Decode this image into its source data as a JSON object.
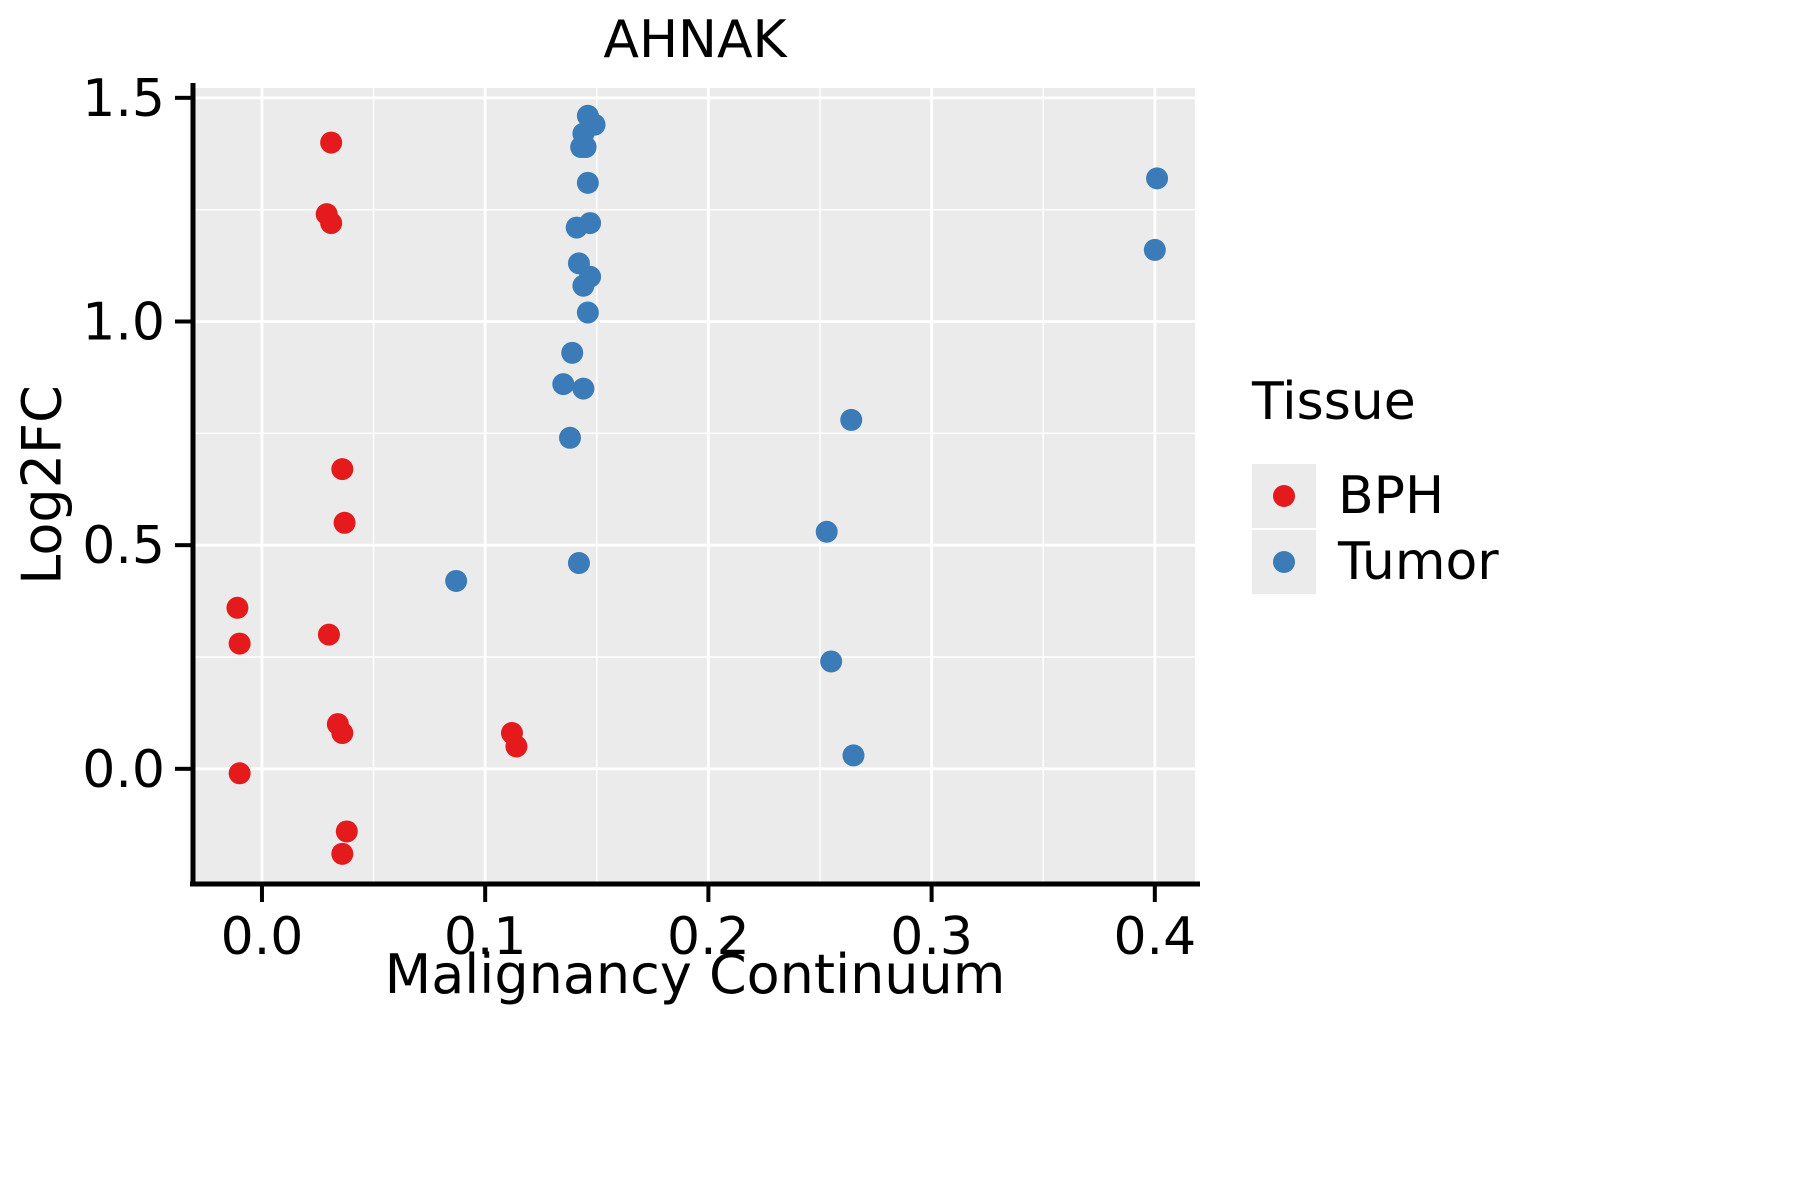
{
  "style": {
    "panel_bg": "#EBEBEB",
    "grid_color": "#FFFFFF",
    "axis_color": "#000000",
    "text_color": "#000000",
    "bph_color": "#E41A1C",
    "tumor_color": "#3B7BB8"
  },
  "chart_data": {
    "type": "scatter",
    "title": "AHNAK",
    "xlabel": "Malignancy Continuum",
    "ylabel": "Log2FC",
    "xlim": [
      -0.03,
      0.418
    ],
    "ylim": [
      -0.253,
      1.522
    ],
    "x_ticks": [
      0.0,
      0.1,
      0.2,
      0.3,
      0.4
    ],
    "x_tick_labels": [
      "0.0",
      "0.1",
      "0.2",
      "0.3",
      "0.4"
    ],
    "x_minor_ticks": [
      0.05,
      0.15,
      0.25,
      0.35
    ],
    "y_ticks": [
      0.0,
      0.5,
      1.0,
      1.5
    ],
    "y_tick_labels": [
      "0.0",
      "0.5",
      "1.0",
      "1.5"
    ],
    "y_minor_ticks": [
      0.25,
      0.75,
      1.25
    ],
    "grid": true,
    "legend_position": "right",
    "legend_title": "Tissue",
    "series": [
      {
        "name": "BPH",
        "color": "#E41A1C",
        "points": [
          [
            0.031,
            1.4
          ],
          [
            0.029,
            1.24
          ],
          [
            0.031,
            1.22
          ],
          [
            0.036,
            0.67
          ],
          [
            0.037,
            0.55
          ],
          [
            -0.011,
            0.36
          ],
          [
            0.03,
            0.3
          ],
          [
            -0.01,
            0.28
          ],
          [
            0.034,
            0.1
          ],
          [
            0.036,
            0.08
          ],
          [
            0.112,
            0.08
          ],
          [
            0.114,
            0.05
          ],
          [
            -0.01,
            -0.01
          ],
          [
            0.038,
            -0.14
          ],
          [
            0.036,
            -0.19
          ]
        ]
      },
      {
        "name": "Tumor",
        "color": "#3B7BB8",
        "points": [
          [
            0.146,
            1.46
          ],
          [
            0.149,
            1.44
          ],
          [
            0.144,
            1.42
          ],
          [
            0.143,
            1.39
          ],
          [
            0.145,
            1.39
          ],
          [
            0.146,
            1.31
          ],
          [
            0.147,
            1.22
          ],
          [
            0.141,
            1.21
          ],
          [
            0.142,
            1.13
          ],
          [
            0.147,
            1.1
          ],
          [
            0.144,
            1.08
          ],
          [
            0.146,
            1.02
          ],
          [
            0.139,
            0.93
          ],
          [
            0.135,
            0.86
          ],
          [
            0.144,
            0.85
          ],
          [
            0.138,
            0.74
          ],
          [
            0.142,
            0.46
          ],
          [
            0.087,
            0.42
          ],
          [
            0.264,
            0.78
          ],
          [
            0.253,
            0.53
          ],
          [
            0.255,
            0.24
          ],
          [
            0.265,
            0.03
          ],
          [
            0.401,
            1.32
          ],
          [
            0.4,
            1.16
          ]
        ]
      }
    ]
  }
}
